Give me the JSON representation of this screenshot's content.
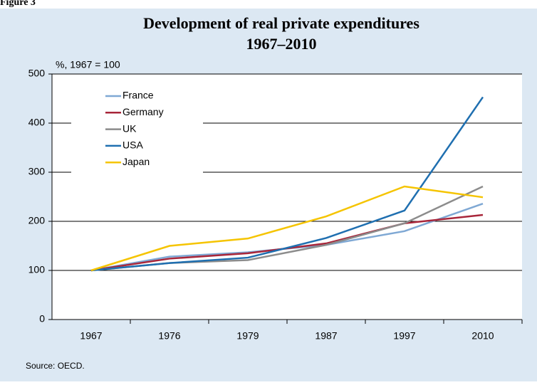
{
  "figure_label": "Figure 3",
  "chart_data": {
    "type": "line",
    "title": "Development of real private expenditures",
    "subtitle": "1967–2010",
    "y_label": "%, 1967 = 100",
    "source": "Source: OECD.",
    "categories": [
      "1967",
      "1976",
      "1979",
      "1987",
      "1997",
      "2010"
    ],
    "series": [
      {
        "name": "France",
        "color": "#7fa8d4",
        "values": [
          100,
          128,
          137,
          152,
          180,
          236
        ]
      },
      {
        "name": "Germany",
        "color": "#a8263a",
        "values": [
          100,
          124,
          135,
          155,
          196,
          213
        ]
      },
      {
        "name": "UK",
        "color": "#8c8c8c",
        "values": [
          100,
          115,
          121,
          152,
          196,
          271
        ]
      },
      {
        "name": "USA",
        "color": "#1f6fb0",
        "values": [
          100,
          115,
          126,
          166,
          222,
          453
        ]
      },
      {
        "name": "Japan",
        "color": "#f5c400",
        "values": [
          100,
          150,
          165,
          210,
          271,
          249
        ]
      }
    ],
    "ylim": [
      0,
      500
    ],
    "yticks": [
      0,
      100,
      200,
      300,
      400,
      500
    ],
    "grid": true,
    "legend": "upper left"
  }
}
